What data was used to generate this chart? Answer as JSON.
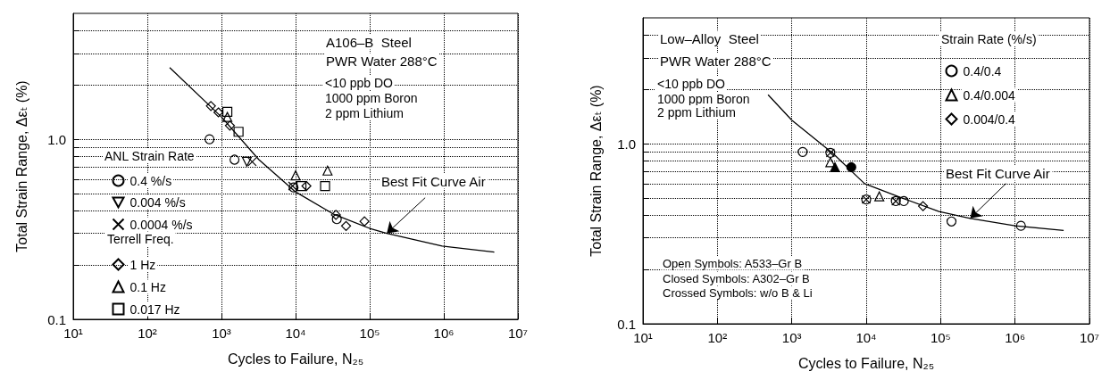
{
  "chart_data": [
    {
      "type": "scatter",
      "xlabel": "Cycles to Failure, N₂₅",
      "ylabel": "Total Strain Range, Δεₜ (%)",
      "annotations": [
        "A106–B  Steel",
        "PWR Water 288°C",
        "<10 ppb DO",
        "1000 ppm Boron",
        "2 ppm Lithium",
        "ANL Strain Rate",
        "Terrell Freq.",
        {
          "text": "Best Fit Curve Air",
          "x": 170000,
          "y": 0.3
        }
      ],
      "log": "xy",
      "xlim": [
        10,
        10000000
      ],
      "ylim": [
        0.1,
        5
      ],
      "xticks": [
        {
          "value": 10,
          "label": "10¹"
        },
        {
          "value": 100,
          "label": "10²"
        },
        {
          "value": 1000,
          "label": "10³"
        },
        {
          "value": 10000,
          "label": "10⁴"
        },
        {
          "value": 100000,
          "label": "10⁵"
        },
        {
          "value": 1000000,
          "label": "10⁶"
        },
        {
          "value": 10000000,
          "label": "10⁷"
        }
      ],
      "yticks": [
        0.1,
        {
          "value": 0.2,
          "label": null
        },
        {
          "value": 0.3,
          "label": null
        },
        {
          "value": 0.4,
          "label": null
        },
        {
          "value": 0.5,
          "label": null
        },
        {
          "value": 0.6,
          "label": null
        },
        {
          "value": 0.7,
          "label": null
        },
        {
          "value": 0.8,
          "label": null
        },
        {
          "value": 0.9,
          "label": null
        },
        {
          "value": 1,
          "label": "1.0"
        },
        {
          "value": 2,
          "label": null
        },
        {
          "value": 3,
          "label": null
        },
        {
          "value": 4,
          "label": null
        }
      ],
      "grid": true,
      "legend": "left",
      "series": [
        {
          "name": "0.4 %/s",
          "color": "#000000",
          "marker": "circle",
          "x": [
            690,
            1500,
            9400,
            36000
          ],
          "values": [
            1.0,
            0.77,
            0.54,
            0.36
          ]
        },
        {
          "name": "0.004 %/s",
          "color": "#000000",
          "marker": "triangle-down",
          "x": [
            2200
          ],
          "values": [
            0.75
          ]
        },
        {
          "name": "0.0004 %/s",
          "color": "#000000",
          "marker": "cross",
          "x": [
            2600,
            9100
          ],
          "values": [
            0.75,
            0.55
          ]
        },
        {
          "name": "1 Hz",
          "color": "#000000",
          "marker": "diamond",
          "x": [
            720,
            910,
            1300,
            14000,
            35000,
            48000,
            85000
          ],
          "values": [
            1.53,
            1.41,
            1.19,
            0.55,
            0.38,
            0.33,
            0.35
          ]
        },
        {
          "name": "0.1 Hz",
          "color": "#000000",
          "marker": "triangle",
          "x": [
            1200,
            10000,
            27000
          ],
          "values": [
            1.33,
            0.63,
            0.67
          ]
        },
        {
          "name": "0.017 Hz",
          "color": "#000000",
          "marker": "square",
          "x": [
            1200,
            1700,
            12000,
            25000
          ],
          "values": [
            1.42,
            1.1,
            0.55,
            0.55
          ]
        },
        {
          "type": "line",
          "color": "#000000",
          "marker": "none",
          "x": [
            200,
            1000,
            3200,
            10000,
            32000,
            100000,
            170000,
            950000,
            4800000
          ],
          "values": [
            2.5,
            1.33,
            0.77,
            0.51,
            0.385,
            0.32,
            0.3,
            0.255,
            0.236
          ]
        }
      ]
    },
    {
      "type": "scatter",
      "xlabel": "Cycles to Failure, N₂₅",
      "ylabel": "Total Strain Range, Δεₜ (%)",
      "legend_title": "Strain Rate (%/s)",
      "annotations": [
        "Low–Alloy  Steel",
        "PWR Water 288°C",
        "<10 ppb DO",
        "1000 ppm Boron",
        "2 ppm Lithium",
        {
          "text": "Best Fit Curve Air",
          "x": 250000,
          "y": 0.385
        },
        "Open Symbols: A533–Gr B",
        "Closed Symbols: A302–Gr B",
        "Crossed Symbols: w/o B & Li"
      ],
      "log": "xy",
      "xlim": [
        10,
        10000000
      ],
      "ylim": [
        0.1,
        5
      ],
      "xticks": [
        {
          "value": 10,
          "label": "10¹"
        },
        {
          "value": 100,
          "label": "10²"
        },
        {
          "value": 1000,
          "label": "10³"
        },
        {
          "value": 10000,
          "label": "10⁴"
        },
        {
          "value": 100000,
          "label": "10⁵"
        },
        {
          "value": 1000000,
          "label": "10⁶"
        },
        {
          "value": 10000000,
          "label": "10⁷"
        }
      ],
      "yticks": [
        0.1,
        {
          "value": 0.2,
          "label": null
        },
        {
          "value": 0.3,
          "label": null
        },
        {
          "value": 0.4,
          "label": null
        },
        {
          "value": 0.5,
          "label": null
        },
        {
          "value": 0.6,
          "label": null
        },
        {
          "value": 0.7,
          "label": null
        },
        {
          "value": 0.8,
          "label": null
        },
        {
          "value": 0.9,
          "label": null
        },
        {
          "value": 1,
          "label": "1.0"
        },
        {
          "value": 2,
          "label": null
        },
        {
          "value": 3,
          "label": null
        },
        {
          "value": 4,
          "label": null
        }
      ],
      "grid": true,
      "legend": "top right",
      "series": [
        {
          "name": "0.4/0.4",
          "color": "#000000",
          "marker": "circle",
          "x": [
            1400,
            3300,
            10000,
            25000,
            32000,
            140000,
            1200000
          ],
          "values": [
            0.9,
            0.89,
            0.49,
            0.48,
            0.48,
            0.37,
            0.35
          ]
        },
        {
          "name": "0.4/0.004",
          "color": "#000000",
          "marker": "triangle",
          "x": [
            3300,
            15000
          ],
          "values": [
            0.79,
            0.51
          ]
        },
        {
          "name": "0.004/0.4",
          "color": "#000000",
          "marker": "diamond",
          "x": [
            58000
          ],
          "values": [
            0.45
          ]
        },
        {
          "color": "#000000",
          "colors": [
            "#000000"
          ],
          "marker": "triangle",
          "x": [
            3800
          ],
          "values": [
            0.74
          ]
        },
        {
          "color": "#000000",
          "colors": [
            "#000000"
          ],
          "marker": "circle",
          "x": [
            6300
          ],
          "values": [
            0.74
          ]
        },
        {
          "color": "#000000",
          "marker": "cross",
          "x": [
            3300,
            10000,
            25000
          ],
          "values": [
            0.89,
            0.49,
            0.48
          ]
        },
        {
          "type": "line",
          "color": "#000000",
          "marker": "none",
          "x": [
            480,
            1000,
            3600,
            9500,
            30000,
            95000,
            250000,
            1000000,
            4500000
          ],
          "values": [
            1.87,
            1.35,
            0.88,
            0.6,
            0.5,
            0.42,
            0.385,
            0.35,
            0.33
          ]
        }
      ]
    }
  ]
}
